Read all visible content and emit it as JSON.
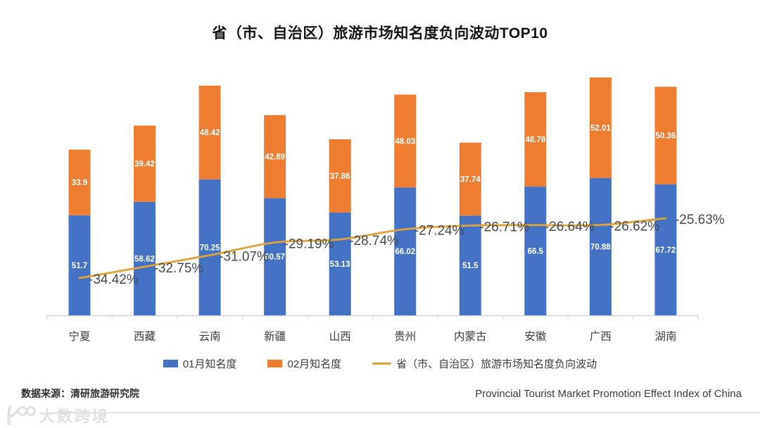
{
  "title": "省（市、自治区）旅游市场知名度负向波动TOP10",
  "chart_data": {
    "type": "bar",
    "subtype": "stacked-bars-with-line",
    "title": "省（市、自治区）旅游市场知名度负向波动TOP10",
    "categories": [
      "宁夏",
      "西藏",
      "云南",
      "新疆",
      "山西",
      "贵州",
      "内蒙古",
      "安徽",
      "广西",
      "湖南"
    ],
    "series": [
      {
        "name": "01月知名度",
        "type": "bar",
        "color": "#4472C4",
        "values": [
          51.7,
          58.62,
          70.25,
          60.57,
          53.13,
          66.02,
          51.5,
          66.5,
          70.88,
          67.72
        ]
      },
      {
        "name": "02月知名度",
        "type": "bar",
        "color": "#ED7D31",
        "values": [
          33.9,
          39.42,
          48.42,
          42.89,
          37.86,
          48.03,
          37.74,
          48.78,
          52.01,
          50.36
        ]
      },
      {
        "name": "省（市、自治区）旅游市场知名度负向波动",
        "type": "line",
        "color": "#DDA339",
        "values": [
          -34.42,
          -32.75,
          -31.07,
          -29.19,
          -28.74,
          -27.24,
          -26.71,
          -26.64,
          -26.62,
          -25.63
        ]
      }
    ],
    "line_labels": [
      "-34.42%",
      "-32.75%",
      "-31.07%",
      "-29.19%",
      "-28.74%",
      "-27.24%",
      "-26.71%",
      "-26.64%",
      "-26.62%",
      "-25.63%"
    ],
    "stacked": true,
    "grid": false,
    "legend_position": "bottom",
    "xlabel": "",
    "ylabel": "",
    "y_axis_visible": false,
    "ylim": [
      0,
      140
    ],
    "y2lim": [
      -35,
      -24.5
    ],
    "bar_label_color": "#ffffff",
    "line_label_color": "#46494c",
    "axis_color": "#d6d6d6"
  },
  "footer": {
    "source": "数据来源：清研旅游研究院",
    "subtitle_en": "Provincial Tourist Market Promotion Effect Index of China"
  },
  "watermark": {
    "text": "大数跨境"
  }
}
